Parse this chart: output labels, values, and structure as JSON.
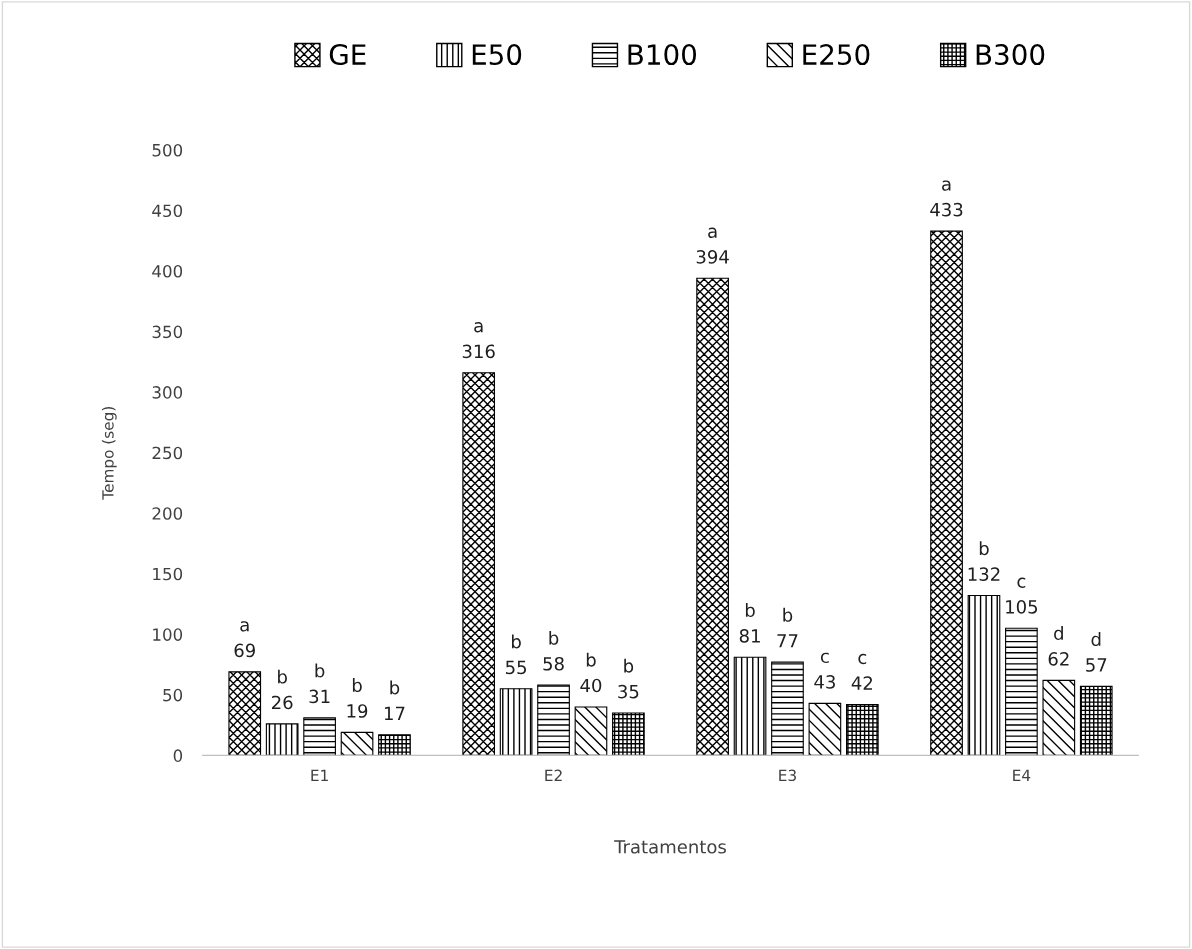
{
  "chart_data": {
    "type": "bar",
    "xlabel": "Tratamentos",
    "ylabel": "Tempo (seg)",
    "categories": [
      "E1",
      "E2",
      "E3",
      "E4"
    ],
    "series": [
      {
        "name": "GE",
        "color": "#000000",
        "values": [
          69,
          316,
          394,
          433
        ],
        "value_labels": [
          "a\n69",
          "a\n316",
          "a\n394",
          "a\n433"
        ]
      },
      {
        "name": "E50",
        "color": "#000000",
        "values": [
          26,
          55,
          81,
          132
        ],
        "value_labels": [
          "b\n26",
          "b\n55",
          "b\n81",
          "b\n132"
        ]
      },
      {
        "name": "B100",
        "color": "#000000",
        "values": [
          31,
          58,
          77,
          105
        ],
        "value_labels": [
          "b\n31",
          "b\n58",
          "b\n77",
          "c\n105"
        ]
      },
      {
        "name": "E250",
        "color": "#000000",
        "values": [
          19,
          40,
          43,
          62
        ],
        "value_labels": [
          "b\n19",
          "b\n40",
          "c\n43",
          "d\n62"
        ]
      },
      {
        "name": "B300",
        "color": "#000000",
        "values": [
          17,
          35,
          42,
          57
        ],
        "value_labels": [
          "b\n17",
          "b\n35",
          "c\n42",
          "d\n57"
        ]
      }
    ],
    "ylim": [
      0,
      500
    ],
    "yticks": [
      0,
      50,
      100,
      150,
      200,
      250,
      300,
      350,
      400,
      450,
      500
    ],
    "grid": false,
    "legend": "top"
  }
}
